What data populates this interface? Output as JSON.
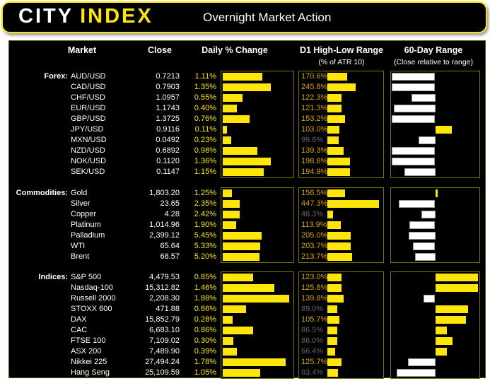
{
  "header": {
    "logo_primary": "CITY",
    "logo_secondary": "INDEX",
    "title": "Overnight Market Action"
  },
  "columns": {
    "market": "Market",
    "close": "Close",
    "daily": "Daily % Change",
    "d1": "D1 High-Low Range",
    "d1_sub": "(% of ATR 10)",
    "range60": "60-Day Range",
    "range60_sub": "(Close relative to range)"
  },
  "colors": {
    "accent_yellow": "#ffe60a",
    "d1_label_orange": "#d9a404",
    "muted_gray": "#63636f",
    "box_border_olive": "#77770e",
    "bar_white": "#ffffff",
    "panel_black": "#000000"
  },
  "chart_data": {
    "type": "bar",
    "title": "Overnight Market Action",
    "d1_axis_max_pct": 480,
    "legend_position": "none",
    "grid": false,
    "sections": [
      {
        "label": "Forex:",
        "daily_axis_max_pct": 2.0,
        "rows": [
          {
            "market": "AUD/USD",
            "close": "0.7213",
            "daily_pct": 1.11,
            "d1_atr_pct": 170.6,
            "range60_pos_pct": 1
          },
          {
            "market": "CAD/USD",
            "close": "0.7903",
            "daily_pct": 1.35,
            "d1_atr_pct": 245.8,
            "range60_pos_pct": 1
          },
          {
            "market": "CHF/USD",
            "close": "1.0957",
            "daily_pct": 0.55,
            "d1_atr_pct": 122.3,
            "range60_pos_pct": 23
          },
          {
            "market": "EUR/USD",
            "close": "1.1743",
            "daily_pct": 0.4,
            "d1_atr_pct": 121.3,
            "range60_pos_pct": 3
          },
          {
            "market": "GBP/USD",
            "close": "1.3725",
            "daily_pct": 0.76,
            "d1_atr_pct": 153.2,
            "range60_pos_pct": 1
          },
          {
            "market": "JPY/USD",
            "close": "0.9116",
            "daily_pct": 0.11,
            "d1_atr_pct": 103.0,
            "range60_pos_pct": 68
          },
          {
            "market": "MXN/USD",
            "close": "0.0492",
            "daily_pct": 0.23,
            "d1_atr_pct": 99.6,
            "range60_pos_pct": 31
          },
          {
            "market": "NZD/USD",
            "close": "0.6892",
            "daily_pct": 0.98,
            "d1_atr_pct": 139.3,
            "range60_pos_pct": 1
          },
          {
            "market": "NOK/USD",
            "close": "0.1120",
            "daily_pct": 1.36,
            "d1_atr_pct": 198.8,
            "range60_pos_pct": 1
          },
          {
            "market": "SEK/USD",
            "close": "0.1147",
            "daily_pct": 1.15,
            "d1_atr_pct": 194.9,
            "range60_pos_pct": 15
          }
        ]
      },
      {
        "label": "Commodities:",
        "daily_axis_max_pct": 10.0,
        "rows": [
          {
            "market": "Gold",
            "close": "1,803.20",
            "daily_pct": 1.25,
            "d1_atr_pct": 156.5,
            "range60_pos_pct": 51
          },
          {
            "market": "Silver",
            "close": "23.65",
            "daily_pct": 2.35,
            "d1_atr_pct": 447.3,
            "range60_pos_pct": 9
          },
          {
            "market": "Copper",
            "close": "4.28",
            "daily_pct": 2.42,
            "d1_atr_pct": 48.3,
            "range60_pos_pct": 34
          },
          {
            "market": "Platinum",
            "close": "1,014.96",
            "daily_pct": 1.9,
            "d1_atr_pct": 113.9,
            "range60_pos_pct": 21
          },
          {
            "market": "Palladium",
            "close": "2,399.12",
            "daily_pct": 5.45,
            "d1_atr_pct": 205.0,
            "range60_pos_pct": 20
          },
          {
            "market": "WTI",
            "close": "65.64",
            "daily_pct": 5.33,
            "d1_atr_pct": 203.7,
            "range60_pos_pct": 25
          },
          {
            "market": "Brent",
            "close": "68.57",
            "daily_pct": 5.2,
            "d1_atr_pct": 213.7,
            "range60_pos_pct": 27
          }
        ]
      },
      {
        "label": "Indices:",
        "daily_axis_max_pct": 2.0,
        "rows": [
          {
            "market": "S&P 500",
            "close": "4,479.53",
            "daily_pct": 0.85,
            "d1_atr_pct": 123.0,
            "range60_pos_pct": 98
          },
          {
            "market": "Nasdaq-100",
            "close": "15,312.82",
            "daily_pct": 1.46,
            "d1_atr_pct": 125.8,
            "range60_pos_pct": 98
          },
          {
            "market": "Russell 2000",
            "close": "2,208.30",
            "daily_pct": 1.88,
            "d1_atr_pct": 139.8,
            "range60_pos_pct": 37
          },
          {
            "market": "STOXX 600",
            "close": "471.88",
            "daily_pct": 0.66,
            "d1_atr_pct": 89.0,
            "range60_pos_pct": 87
          },
          {
            "market": "DAX",
            "close": "15,852.79",
            "daily_pct": 0.28,
            "d1_atr_pct": 105.7,
            "range60_pos_pct": 84
          },
          {
            "market": "CAC",
            "close": "6,683.10",
            "daily_pct": 0.86,
            "d1_atr_pct": 86.5,
            "range60_pos_pct": 63
          },
          {
            "market": "FTSE 100",
            "close": "7,109.02",
            "daily_pct": 0.3,
            "d1_atr_pct": 86.0,
            "range60_pos_pct": 69
          },
          {
            "market": "ASX 200",
            "close": "7,489.90",
            "daily_pct": 0.39,
            "d1_atr_pct": 66.4,
            "range60_pos_pct": 63
          },
          {
            "market": "Nikkei 225",
            "close": "27,494.24",
            "daily_pct": 1.78,
            "d1_atr_pct": 125.7,
            "range60_pos_pct": 19
          },
          {
            "market": "Hang Seng",
            "close": "25,109.59",
            "daily_pct": 1.05,
            "d1_atr_pct": 93.4,
            "range60_pos_pct": 6
          }
        ]
      }
    ]
  }
}
